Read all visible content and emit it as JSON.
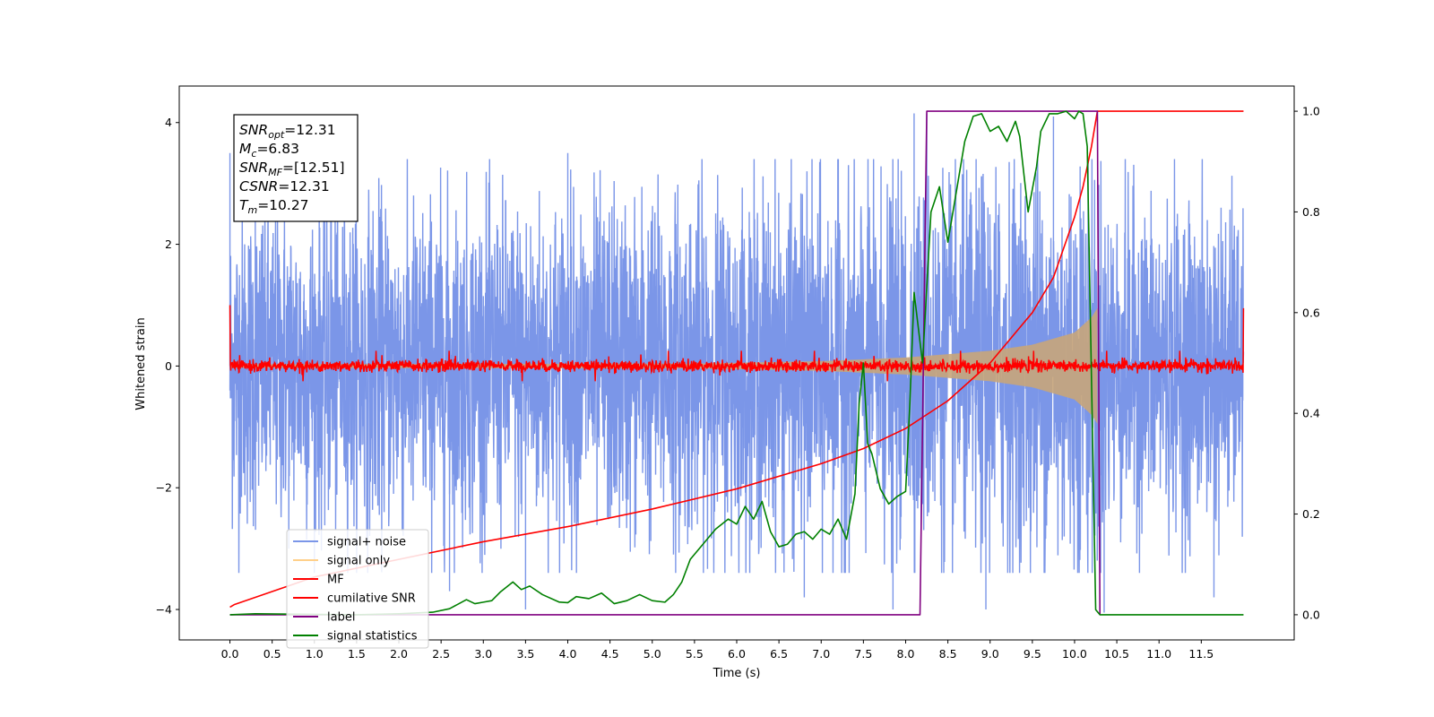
{
  "chart_data": {
    "type": "line",
    "xlabel": "Time (s)",
    "ylabel": "Whitened strain",
    "xlim": [
      -0.6,
      12.6
    ],
    "ylim": [
      -4.5,
      4.6
    ],
    "y2lim": [
      -0.05,
      1.05
    ],
    "x_ticks": [
      0.0,
      0.5,
      1.0,
      1.5,
      2.0,
      2.5,
      3.0,
      3.5,
      4.0,
      4.5,
      5.0,
      5.5,
      6.0,
      6.5,
      7.0,
      7.5,
      8.0,
      8.5,
      9.0,
      9.5,
      10.0,
      10.5,
      11.0,
      11.5
    ],
    "x_tick_labels": [
      "0.0",
      "0.5",
      "1.0",
      "1.5",
      "2.0",
      "2.5",
      "3.0",
      "3.5",
      "4.0",
      "4.5",
      "5.0",
      "5.5",
      "6.0",
      "6.5",
      "7.0",
      "7.5",
      "8.0",
      "8.5",
      "9.0",
      "9.5",
      "10.0",
      "10.5",
      "11.0",
      "11.5"
    ],
    "y_ticks": [
      -4,
      -2,
      0,
      2,
      4
    ],
    "y_tick_labels": [
      "−4",
      "−2",
      "0",
      "2",
      "4"
    ],
    "y2_ticks": [
      0.0,
      0.2,
      0.4,
      0.6,
      0.8,
      1.0
    ],
    "y2_tick_labels": [
      "0.0",
      "0.2",
      "0.4",
      "0.6",
      "0.8",
      "1.0"
    ],
    "grid": false,
    "legend_position": "bottom-left",
    "annotation": {
      "lines": [
        {
          "base": "SNR",
          "sub": "opt",
          "value": "=12.31"
        },
        {
          "base": "M",
          "sub": "c",
          "value": "=6.83"
        },
        {
          "base": "SNR",
          "sub": "MF",
          "value": "=[12.51]"
        },
        {
          "base": "CSNR",
          "sub": "",
          "value": "=12.31"
        },
        {
          "base": "T",
          "sub": "m",
          "value": "=10.27"
        }
      ]
    },
    "series": [
      {
        "name": "signal+ noise",
        "axis": "left",
        "color": "#7b96e8",
        "kind": "noise_band",
        "x_range": [
          0.0,
          12.0
        ],
        "typical_envelope": [
          [
            0.0,
            2.5
          ],
          [
            4.0,
            2.6
          ],
          [
            8.0,
            2.8
          ],
          [
            10.0,
            3.2
          ],
          [
            10.27,
            3.3
          ],
          [
            10.4,
            2.6
          ],
          [
            12.0,
            2.4
          ]
        ],
        "peaks": [
          [
            0.0,
            3.5
          ],
          [
            0.3,
            3.5
          ],
          [
            1.2,
            3.6
          ],
          [
            2.6,
            -3.7
          ],
          [
            3.5,
            -4.0
          ],
          [
            4.0,
            3.5
          ],
          [
            6.8,
            -3.8
          ],
          [
            7.85,
            -4.0
          ],
          [
            8.1,
            4.15
          ],
          [
            8.25,
            4.15
          ],
          [
            8.95,
            -4.0
          ],
          [
            9.75,
            4.1
          ],
          [
            10.35,
            -4.05
          ],
          [
            11.65,
            -3.8
          ]
        ]
      },
      {
        "name": "signal only",
        "axis": "left",
        "color": "#c8a57a",
        "kind": "chirp_envelope",
        "x": [
          0.0,
          5.5,
          7.0,
          8.0,
          9.0,
          9.5,
          10.0,
          10.2,
          10.27
        ],
        "amplitude": [
          0.03,
          0.04,
          0.08,
          0.14,
          0.25,
          0.35,
          0.55,
          0.8,
          0.95
        ]
      },
      {
        "name": "MF",
        "axis": "left",
        "color": "#ff0000",
        "kind": "noise_line",
        "x_range": [
          0.0,
          12.0
        ],
        "start_value": 1.0,
        "end_value": 0.95,
        "noise_sigma": 0.05
      },
      {
        "name": "cumilative SNR",
        "axis": "right",
        "color": "#ff0000",
        "x": [
          0.0,
          0.05,
          1.0,
          2.0,
          3.0,
          4.0,
          5.0,
          6.0,
          7.0,
          7.5,
          8.0,
          8.5,
          9.0,
          9.5,
          9.75,
          10.0,
          10.1,
          10.2,
          10.27,
          12.0
        ],
        "values": [
          0.015,
          0.02,
          0.075,
          0.11,
          0.145,
          0.175,
          0.21,
          0.25,
          0.3,
          0.33,
          0.37,
          0.425,
          0.5,
          0.6,
          0.67,
          0.79,
          0.85,
          0.93,
          1.0,
          1.0
        ]
      },
      {
        "name": "label",
        "axis": "right",
        "color": "#800080",
        "x": [
          0.0,
          8.17,
          8.25,
          10.27,
          10.3
        ],
        "values": [
          0.0,
          0.0,
          1.0,
          1.0,
          0.0
        ]
      },
      {
        "name": "signal statistics",
        "axis": "right",
        "color": "#008000",
        "x": [
          0.0,
          0.3,
          0.8,
          1.5,
          2.0,
          2.4,
          2.6,
          2.8,
          2.9,
          3.0,
          3.1,
          3.2,
          3.35,
          3.45,
          3.55,
          3.7,
          3.9,
          4.0,
          4.1,
          4.25,
          4.4,
          4.55,
          4.7,
          4.85,
          5.0,
          5.15,
          5.25,
          5.35,
          5.45,
          5.6,
          5.75,
          5.9,
          6.0,
          6.1,
          6.2,
          6.3,
          6.4,
          6.5,
          6.6,
          6.7,
          6.8,
          6.9,
          7.0,
          7.1,
          7.2,
          7.3,
          7.4,
          7.45,
          7.5,
          7.55,
          7.6,
          7.7,
          7.8,
          7.9,
          8.0,
          8.05,
          8.1,
          8.2,
          8.3,
          8.4,
          8.5,
          8.6,
          8.7,
          8.8,
          8.9,
          9.0,
          9.1,
          9.2,
          9.3,
          9.35,
          9.45,
          9.55,
          9.6,
          9.7,
          9.8,
          9.9,
          10.0,
          10.05,
          10.1,
          10.15,
          10.25,
          10.3,
          10.35,
          11.0,
          12.0
        ],
        "values": [
          0.0,
          0.002,
          0.001,
          0.0,
          0.002,
          0.005,
          0.012,
          0.03,
          0.022,
          0.025,
          0.028,
          0.045,
          0.065,
          0.05,
          0.057,
          0.04,
          0.025,
          0.024,
          0.036,
          0.032,
          0.043,
          0.022,
          0.028,
          0.04,
          0.028,
          0.025,
          0.04,
          0.065,
          0.11,
          0.14,
          0.17,
          0.19,
          0.18,
          0.215,
          0.19,
          0.225,
          0.165,
          0.135,
          0.14,
          0.16,
          0.165,
          0.15,
          0.17,
          0.16,
          0.19,
          0.15,
          0.24,
          0.42,
          0.5,
          0.34,
          0.32,
          0.25,
          0.22,
          0.235,
          0.245,
          0.42,
          0.64,
          0.5,
          0.8,
          0.85,
          0.74,
          0.84,
          0.94,
          0.99,
          0.995,
          0.96,
          0.97,
          0.94,
          0.98,
          0.95,
          0.8,
          0.89,
          0.96,
          0.995,
          0.995,
          1.0,
          0.985,
          1.0,
          0.995,
          0.93,
          0.01,
          0.0,
          0.0,
          0.0,
          0.0
        ]
      }
    ]
  }
}
